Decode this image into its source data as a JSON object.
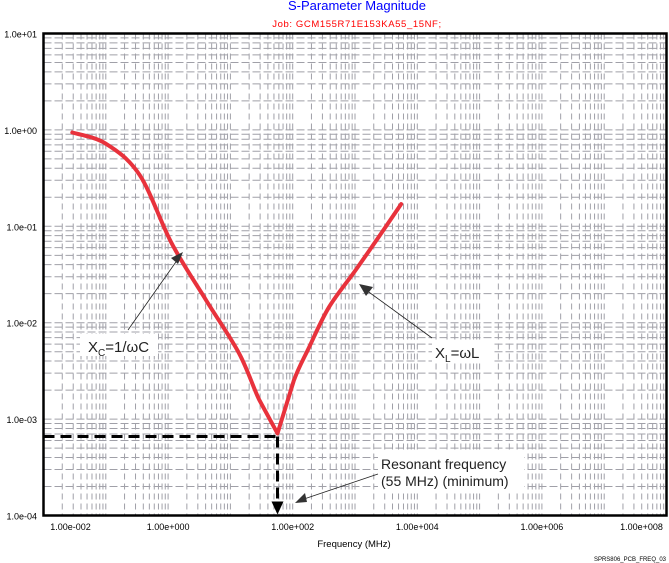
{
  "chart_data": {
    "type": "line",
    "title": "S-Parameter Magnitude",
    "subtitle": "Job: GCM155R71E153KA55_15NF;",
    "xlabel": "Frequency (MHz)",
    "ylabel": "",
    "xscale": "log",
    "yscale": "log",
    "xlim": [
      0.01,
      100000000
    ],
    "ylim": [
      0.0001,
      10
    ],
    "grid": true,
    "x_tick_labels": [
      "1.00e-002",
      "1.00e+000",
      "1.00e+002",
      "1.00e+004",
      "1.00e+006",
      "1.00e+008"
    ],
    "x_tick_values": [
      0.01,
      1,
      100,
      10000,
      1000000,
      100000000
    ],
    "y_tick_labels": [
      "1.0e+01",
      "1.0e+00",
      "1.0e-01",
      "1.0e-02",
      "1.0e-03",
      "1.0e-04"
    ],
    "y_tick_values": [
      10,
      1,
      0.1,
      0.01,
      0.001,
      0.0001
    ],
    "series": [
      {
        "color": "#e8323c",
        "x": [
          0.029,
          0.1,
          0.35,
          1.15,
          4.1,
          13.8,
          28.8,
          57,
          104,
          182,
          380,
          1020,
          2650,
          5500
        ],
        "y": [
          0.94,
          0.72,
          0.34,
          0.066,
          0.017,
          0.0048,
          0.0016,
          0.00071,
          0.0025,
          0.0055,
          0.0144,
          0.035,
          0.085,
          0.17
        ]
      }
    ],
    "annotations": {
      "xc_label": "X",
      "xc_sub": "C",
      "xc_rest": "=1/ωC",
      "xl_label": "X",
      "xl_sub": "L",
      "xl_rest": "=ωL",
      "resonant_line1": "Resonant frequency",
      "resonant_line2": "(55 MHz) (minimum)",
      "marker_freq": 57,
      "marker_mag": 0.00066
    },
    "title_color": "#0000ff",
    "subtitle_color": "#ff0000",
    "figure_code": "SPRS806_PCB_FREQ_03"
  }
}
